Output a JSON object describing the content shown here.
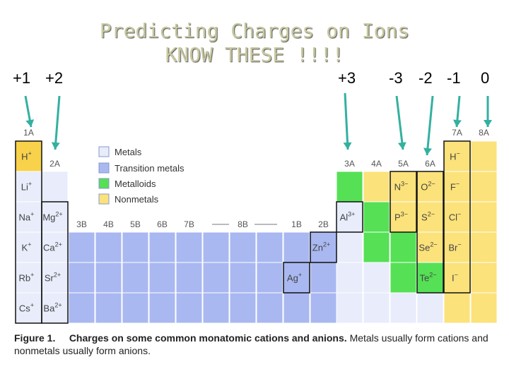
{
  "title": {
    "line1": "Predicting Charges on Ions",
    "line2": "KNOW THESE !!!!"
  },
  "charges": [
    {
      "id": "c1",
      "label": "+1",
      "x": 18
    },
    {
      "id": "c2",
      "label": "+2",
      "x": 64
    },
    {
      "id": "c3",
      "label": "+3",
      "x": 478
    },
    {
      "id": "c4",
      "label": "-3",
      "x": 550
    },
    {
      "id": "c5",
      "label": "-2",
      "x": 592
    },
    {
      "id": "c6",
      "label": "-1",
      "x": 632
    },
    {
      "id": "c7",
      "label": "0",
      "x": 680
    }
  ],
  "colors": {
    "metals": "#e8ecfb",
    "transition": "#a9b8f0",
    "metalloids": "#55e055",
    "nonmetals": "#fbe27a",
    "group1_top": "#f8d24a"
  },
  "legend": [
    {
      "label": "Metals",
      "color": "metals"
    },
    {
      "label": "Transition metals",
      "color": "transition"
    },
    {
      "label": "Metalloids",
      "color": "metalloids"
    },
    {
      "label": "Nonmetals",
      "color": "nonmetals"
    }
  ],
  "group_labels": {
    "g1": "1A",
    "g2": "2A",
    "g3": "3B",
    "g4": "4B",
    "g5": "5B",
    "g6": "6B",
    "g7": "7B",
    "g8": "8B",
    "g11": "1B",
    "g12": "2B",
    "g13": "3A",
    "g14": "4A",
    "g15": "5A",
    "g16": "6A",
    "g17": "7A",
    "g18": "8A"
  },
  "ions": [
    {
      "name": "H-plus",
      "sym": "H",
      "sup": "+"
    },
    {
      "name": "Li",
      "sym": "Li",
      "sup": "+"
    },
    {
      "name": "Na",
      "sym": "Na",
      "sup": "+"
    },
    {
      "name": "K",
      "sym": "K",
      "sup": "+"
    },
    {
      "name": "Rb",
      "sym": "Rb",
      "sup": "+"
    },
    {
      "name": "Cs",
      "sym": "Cs",
      "sup": "+"
    },
    {
      "name": "Mg",
      "sym": "Mg",
      "sup": "2+"
    },
    {
      "name": "Ca",
      "sym": "Ca",
      "sup": "2+"
    },
    {
      "name": "Sr",
      "sym": "Sr",
      "sup": "2+"
    },
    {
      "name": "Ba",
      "sym": "Ba",
      "sup": "2+"
    },
    {
      "name": "Al",
      "sym": "Al",
      "sup": "3+"
    },
    {
      "name": "Zn",
      "sym": "Zn",
      "sup": "2+"
    },
    {
      "name": "Ag",
      "sym": "Ag",
      "sup": "+"
    },
    {
      "name": "N",
      "sym": "N",
      "sup": "3−"
    },
    {
      "name": "O",
      "sym": "O",
      "sup": "2−"
    },
    {
      "name": "F",
      "sym": "F",
      "sup": "−"
    },
    {
      "name": "P",
      "sym": "P",
      "sup": "3−"
    },
    {
      "name": "S",
      "sym": "S",
      "sup": "2−"
    },
    {
      "name": "Cl",
      "sym": "Cl",
      "sup": "−"
    },
    {
      "name": "Se",
      "sym": "Se",
      "sup": "2−"
    },
    {
      "name": "Br",
      "sym": "Br",
      "sup": "−"
    },
    {
      "name": "Te",
      "sym": "Te",
      "sup": "2−"
    },
    {
      "name": "I",
      "sym": "I",
      "sup": "−"
    },
    {
      "name": "H-minus",
      "sym": "H",
      "sup": "−"
    }
  ],
  "caption": {
    "fig": "Figure 1.",
    "text": "Charges on some common monatomic cations and anions.",
    "rest": "Metals usually form cations and nonmetals usually form anions."
  }
}
